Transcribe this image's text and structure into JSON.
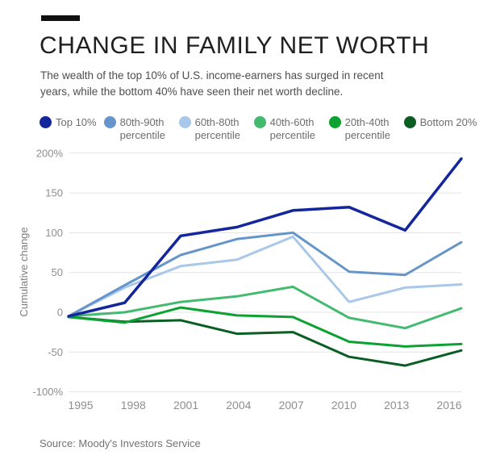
{
  "header": {
    "title": "CHANGE IN FAMILY NET WORTH",
    "subtitle_line1": "The wealth of the top 10% of U.S. income-earners has surged in recent",
    "subtitle_line2": "years, while the bottom 40% have seen their net worth decline."
  },
  "source": "Source: Moody's Investors Service",
  "colors": {
    "accent_bar": "#111111",
    "grid": "#e3e3e3",
    "tick_text": "#8e8e8e",
    "axis_title_text": "#7f7f7f",
    "legend_text": "#6d6d6d"
  },
  "chart_data": {
    "type": "line",
    "title": "CHANGE IN FAMILY NET WORTH",
    "x": [
      1995,
      1998,
      2001,
      2004,
      2007,
      2010,
      2013,
      2016
    ],
    "x_tick_labels": [
      "1995",
      "1998",
      "2001",
      "2004",
      "2007",
      "2010",
      "2013",
      "2016"
    ],
    "xlabel": "",
    "ylabel": "Cumulative change",
    "ylim": [
      -100,
      200
    ],
    "grid": "horizontal",
    "legend_position": "top",
    "y_ticks": [
      {
        "value": 200,
        "label": "200%"
      },
      {
        "value": 150,
        "label": "150"
      },
      {
        "value": 100,
        "label": "100"
      },
      {
        "value": 50,
        "label": "50"
      },
      {
        "value": 0,
        "label": "0"
      },
      {
        "value": -50,
        "label": "-50"
      },
      {
        "value": -100,
        "label": "-100%"
      }
    ],
    "series": [
      {
        "name": "Top 10%",
        "legend_lines": [
          "Top 10%"
        ],
        "color": "#14269b",
        "line_width": 3.5,
        "values": [
          -5,
          12,
          96,
          107,
          128,
          132,
          103,
          193
        ]
      },
      {
        "name": "80th-90th percentile",
        "legend_lines": [
          "80th-90th",
          "percentile"
        ],
        "color": "#6695ca",
        "line_width": 3,
        "values": [
          -5,
          34,
          72,
          92,
          100,
          51,
          47,
          88
        ]
      },
      {
        "name": "60th-80th percentile",
        "legend_lines": [
          "60th-80th",
          "percentile"
        ],
        "color": "#a9c7e9",
        "line_width": 3,
        "values": [
          -5,
          31,
          58,
          66,
          95,
          13,
          31,
          35
        ]
      },
      {
        "name": "40th-60th percentile",
        "legend_lines": [
          "40th-60th",
          "percentile"
        ],
        "color": "#43ba70",
        "line_width": 3,
        "values": [
          -5,
          0,
          13,
          20,
          32,
          -7,
          -20,
          5
        ]
      },
      {
        "name": "20th-40th percentile",
        "legend_lines": [
          "20th-40th",
          "percentile"
        ],
        "color": "#0ba232",
        "line_width": 3,
        "values": [
          -6,
          -13,
          6,
          -4,
          -6,
          -37,
          -43,
          -40
        ]
      },
      {
        "name": "Bottom 20%",
        "legend_lines": [
          "Bottom 20%"
        ],
        "color": "#0a5e23",
        "line_width": 3,
        "values": [
          -6,
          -12,
          -10,
          -27,
          -25,
          -56,
          -67,
          -48
        ]
      }
    ],
    "draw_order": [
      2,
      1,
      3,
      5,
      4,
      0
    ]
  }
}
